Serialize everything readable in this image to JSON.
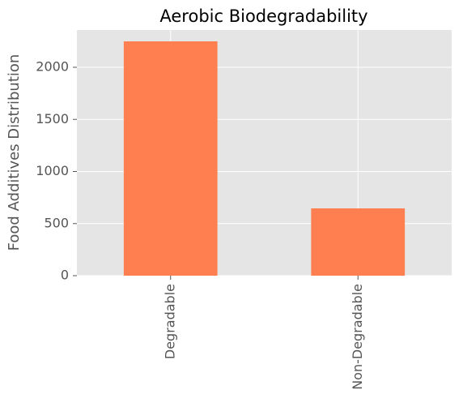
{
  "chart_data": {
    "type": "bar",
    "title": "Aerobic Biodegradability",
    "ylabel": "Food Additives Distribution",
    "categories": [
      "Degradable",
      "Non-Degradable"
    ],
    "values": [
      2249,
      646
    ],
    "color": "#ff7f50",
    "ylim": [
      0,
      2358
    ],
    "yticks": [
      0,
      500,
      1000,
      1500,
      2000
    ],
    "grid": true
  }
}
